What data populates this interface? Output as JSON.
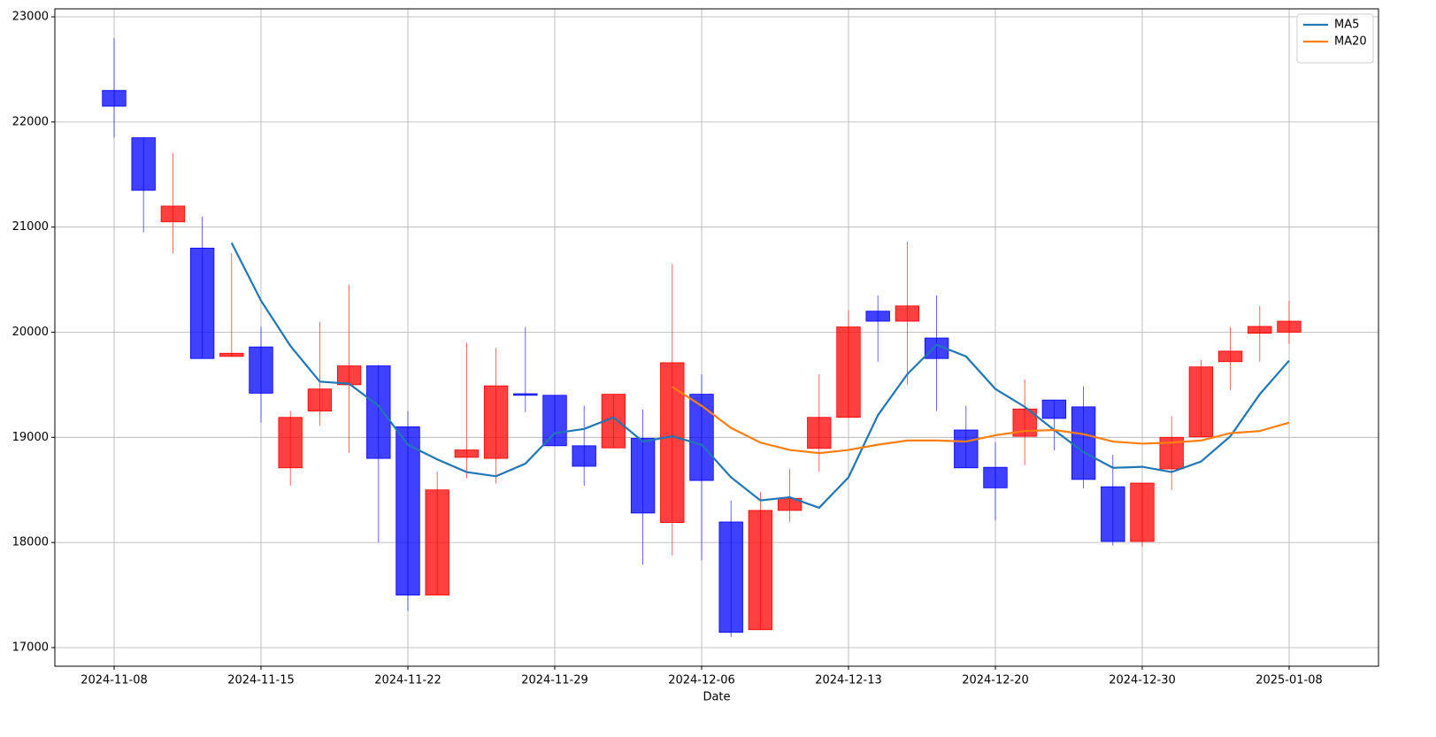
{
  "chart_data": {
    "type": "candlestick",
    "xlabel": "Date",
    "categories": [
      "2024-11-08",
      null,
      null,
      null,
      null,
      "2024-11-15",
      null,
      null,
      null,
      null,
      "2024-11-22",
      null,
      null,
      null,
      null,
      "2024-11-29",
      null,
      null,
      null,
      null,
      "2024-12-06",
      null,
      null,
      null,
      null,
      "2024-12-13",
      null,
      null,
      null,
      null,
      "2024-12-20",
      null,
      null,
      null,
      null,
      "2024-12-30",
      null,
      null,
      null,
      null,
      "2025-01-08"
    ],
    "open": [
      22300,
      21850,
      21050,
      20800,
      19770,
      19860,
      18710,
      19250,
      19500,
      19680,
      19100,
      17500,
      18810,
      18800,
      19415,
      19400,
      18920,
      18900,
      18990,
      18190,
      19410,
      18195,
      17170,
      18305,
      18895,
      19190,
      20200,
      20105,
      19945,
      19070,
      18715,
      19010,
      19355,
      19290,
      18530,
      18010,
      18700,
      19005,
      19720,
      19990,
      20000
    ],
    "high": [
      22800,
      21850,
      21700,
      21100,
      20750,
      20050,
      19250,
      20100,
      20450,
      19690,
      19250,
      18670,
      19900,
      19850,
      20050,
      19400,
      19300,
      19410,
      19265,
      20650,
      19600,
      18400,
      18480,
      18700,
      19600,
      20210,
      20350,
      20860,
      20350,
      19300,
      18950,
      19550,
      19355,
      19485,
      18835,
      18565,
      19200,
      19735,
      20050,
      20250,
      20300
    ],
    "low": [
      21850,
      20950,
      20750,
      19750,
      19770,
      19140,
      18540,
      19110,
      18850,
      18000,
      17350,
      17500,
      18610,
      18560,
      19240,
      18920,
      18540,
      18900,
      17790,
      17875,
      17830,
      17100,
      17170,
      18195,
      18675,
      19190,
      19720,
      19500,
      19250,
      18710,
      18210,
      18735,
      18875,
      18515,
      17970,
      17960,
      18500,
      19005,
      19450,
      19720,
      19890
    ],
    "close": [
      22150,
      21350,
      21200,
      19750,
      19800,
      19420,
      19190,
      19460,
      19680,
      18800,
      17500,
      18500,
      18880,
      19490,
      19400,
      18920,
      18725,
      19410,
      18280,
      19710,
      18590,
      17145,
      18305,
      18420,
      19190,
      20050,
      20105,
      20250,
      19750,
      18710,
      18520,
      19270,
      19180,
      18600,
      18010,
      18565,
      19000,
      19670,
      19820,
      20055,
      20105
    ],
    "up_color": "#ff0000",
    "down_color": "#0000ff",
    "series": [
      {
        "name": "MA5",
        "color": "#1f77b4",
        "values": [
          null,
          null,
          null,
          null,
          20850,
          20300,
          19870,
          19530,
          19510,
          19300,
          18930,
          18790,
          18670,
          18630,
          18750,
          19040,
          19080,
          19190,
          18960,
          19010,
          18930,
          18620,
          18400,
          18430,
          18330,
          18620,
          19210,
          19600,
          19880,
          19770,
          19460,
          19290,
          19070,
          18860,
          18710,
          18720,
          18670,
          18770,
          19010,
          19410,
          19730
        ]
      },
      {
        "name": "MA20",
        "color": "#ff7f0e",
        "values": [
          null,
          null,
          null,
          null,
          null,
          null,
          null,
          null,
          null,
          null,
          null,
          null,
          null,
          null,
          null,
          null,
          null,
          null,
          null,
          19480,
          19300,
          19090,
          18950,
          18880,
          18850,
          18880,
          18930,
          18970,
          18970,
          18960,
          19020,
          19060,
          19070,
          19030,
          18960,
          18940,
          18950,
          18970,
          19040,
          19060,
          19140
        ]
      }
    ],
    "ylim": [
      16823,
      23076
    ],
    "yticks": [
      17000,
      18000,
      19000,
      20000,
      21000,
      22000,
      23000
    ],
    "grid": true,
    "legend": "upper right"
  }
}
